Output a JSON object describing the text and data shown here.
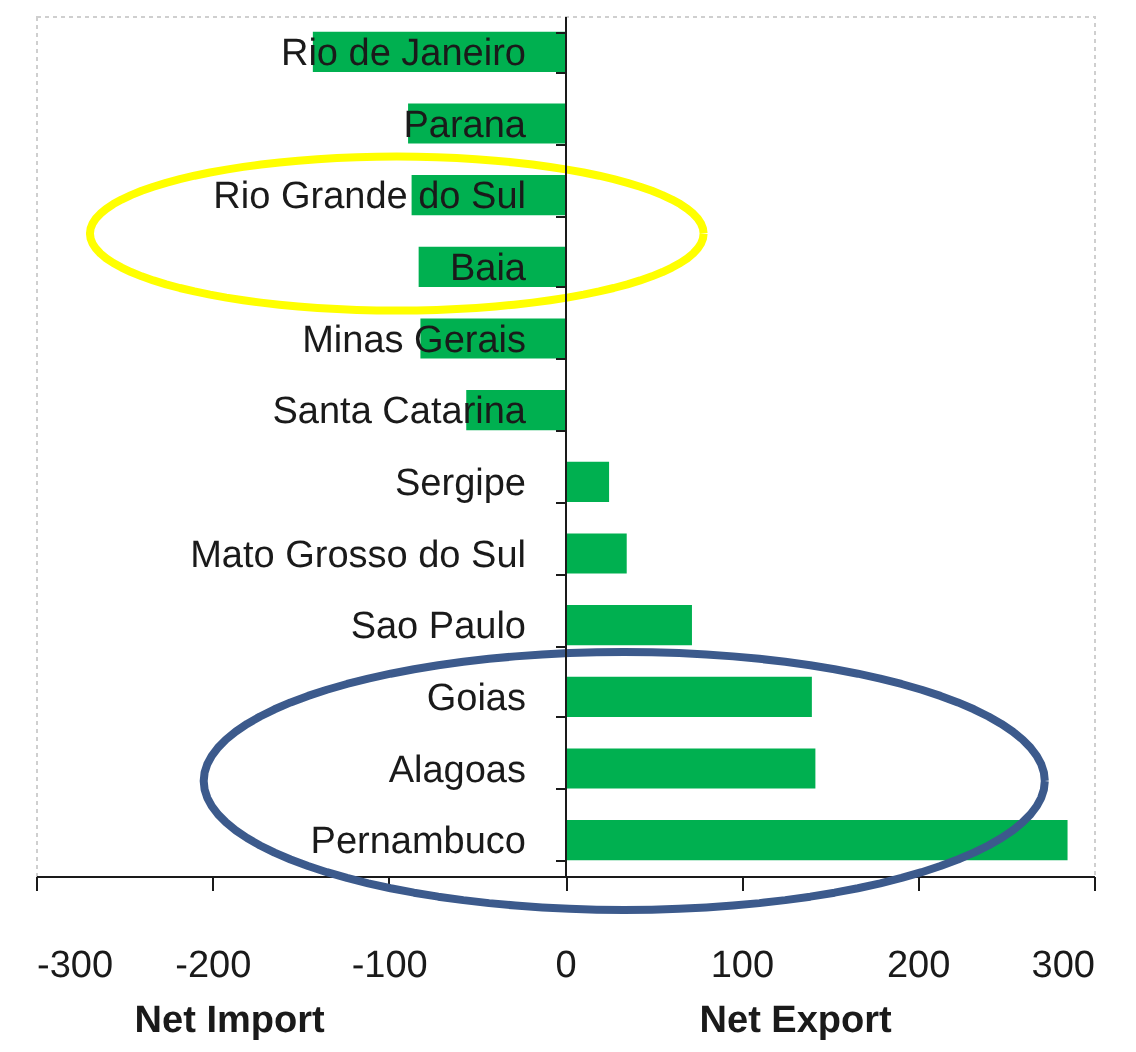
{
  "chart_data": {
    "type": "bar",
    "orientation": "horizontal",
    "categories": [
      "Rio de Janeiro",
      "Parana",
      "Rio Grande do Sul",
      "Baia",
      "Minas Gerais",
      "Santa Catarina",
      "Sergipe",
      "Mato Grosso do Sul",
      "Sao Paulo",
      "Goias",
      "Alagoas",
      "Pernambuco"
    ],
    "values": [
      -143,
      -89,
      -87,
      -83,
      -82,
      -56,
      25,
      35,
      72,
      140,
      142,
      285
    ],
    "color": "#00b050",
    "xlim": [
      -300,
      300
    ],
    "xticks": [
      -300,
      -200,
      -100,
      0,
      100,
      200,
      300
    ],
    "annotations": [
      "Net Import",
      "Net Export"
    ]
  }
}
